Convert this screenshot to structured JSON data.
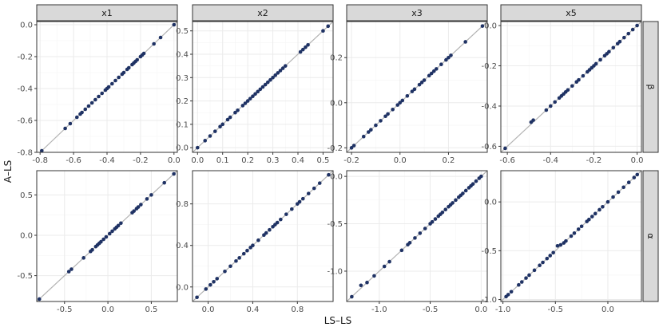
{
  "chart_data": {
    "type": "scatter",
    "facet_layout": "grid",
    "xlabel": "LS–LS",
    "ylabel": "A–LS",
    "grid": true,
    "reference_line": "y = x",
    "colors": {
      "points": "#1f3264",
      "reference_line": "#b3b3b3",
      "strip": "#d9d9d9"
    },
    "columns": [
      "x1",
      "x2",
      "x3",
      "x5"
    ],
    "rows": [
      "β",
      "α"
    ],
    "panels": [
      {
        "column": "x1",
        "row": "β",
        "xlim": [
          -0.82,
          0.02
        ],
        "ylim": [
          -0.8,
          0.02
        ],
        "xticks": [
          -0.8,
          -0.6,
          -0.4,
          -0.2,
          0.0
        ],
        "yticks": [
          -0.8,
          -0.6,
          -0.4,
          -0.2,
          0.0
        ],
        "x": [
          -0.79,
          -0.65,
          -0.62,
          -0.58,
          -0.56,
          -0.55,
          -0.53,
          -0.51,
          -0.49,
          -0.47,
          -0.45,
          -0.43,
          -0.41,
          -0.4,
          -0.39,
          -0.37,
          -0.35,
          -0.33,
          -0.31,
          -0.3,
          -0.28,
          -0.27,
          -0.25,
          -0.24,
          -0.23,
          -0.22,
          -0.2,
          -0.19,
          -0.18,
          -0.12,
          -0.08,
          0.0
        ],
        "y": [
          -0.79,
          -0.65,
          -0.62,
          -0.58,
          -0.56,
          -0.55,
          -0.53,
          -0.51,
          -0.49,
          -0.47,
          -0.45,
          -0.43,
          -0.41,
          -0.4,
          -0.39,
          -0.37,
          -0.35,
          -0.33,
          -0.31,
          -0.3,
          -0.28,
          -0.27,
          -0.25,
          -0.24,
          -0.23,
          -0.22,
          -0.2,
          -0.19,
          -0.18,
          -0.12,
          -0.08,
          0.0
        ]
      },
      {
        "column": "x2",
        "row": "β",
        "xlim": [
          -0.02,
          0.54
        ],
        "ylim": [
          -0.02,
          0.54
        ],
        "xticks": [
          0.0,
          0.1,
          0.2,
          0.3,
          0.4,
          0.5
        ],
        "yticks": [
          0.0,
          0.1,
          0.2,
          0.3,
          0.4,
          0.5
        ],
        "x": [
          0.0,
          0.03,
          0.05,
          0.07,
          0.09,
          0.1,
          0.12,
          0.13,
          0.15,
          0.16,
          0.18,
          0.19,
          0.2,
          0.21,
          0.22,
          0.23,
          0.24,
          0.25,
          0.26,
          0.27,
          0.28,
          0.29,
          0.3,
          0.31,
          0.32,
          0.33,
          0.34,
          0.35,
          0.41,
          0.42,
          0.43,
          0.44,
          0.5,
          0.52
        ],
        "y": [
          0.0,
          0.03,
          0.05,
          0.07,
          0.09,
          0.1,
          0.12,
          0.13,
          0.15,
          0.16,
          0.18,
          0.19,
          0.2,
          0.21,
          0.22,
          0.23,
          0.24,
          0.25,
          0.26,
          0.27,
          0.28,
          0.29,
          0.3,
          0.31,
          0.32,
          0.33,
          0.34,
          0.35,
          0.41,
          0.42,
          0.43,
          0.44,
          0.5,
          0.52
        ]
      },
      {
        "column": "x3",
        "row": "β",
        "xlim": [
          -0.22,
          0.36
        ],
        "ylim": [
          -0.22,
          0.36
        ],
        "xticks": [
          -0.2,
          0.0,
          0.2
        ],
        "yticks": [
          -0.2,
          0.0,
          0.2
        ],
        "x": [
          -0.2,
          -0.19,
          -0.15,
          -0.13,
          -0.12,
          -0.1,
          -0.08,
          -0.06,
          -0.05,
          -0.03,
          -0.01,
          0.0,
          0.01,
          0.03,
          0.05,
          0.06,
          0.08,
          0.09,
          0.1,
          0.12,
          0.13,
          0.14,
          0.15,
          0.17,
          0.19,
          0.2,
          0.21,
          0.27,
          0.34
        ],
        "y": [
          -0.2,
          -0.19,
          -0.15,
          -0.13,
          -0.12,
          -0.1,
          -0.08,
          -0.06,
          -0.05,
          -0.03,
          -0.01,
          0.0,
          0.01,
          0.03,
          0.05,
          0.06,
          0.08,
          0.09,
          0.1,
          0.12,
          0.13,
          0.14,
          0.15,
          0.17,
          0.19,
          0.2,
          0.21,
          0.27,
          0.34
        ]
      },
      {
        "column": "x5",
        "row": "β",
        "xlim": [
          -0.63,
          0.02
        ],
        "ylim": [
          -0.63,
          0.02
        ],
        "xticks": [
          -0.6,
          -0.4,
          -0.2,
          0.0
        ],
        "yticks": [
          -0.6,
          -0.4,
          -0.2,
          0.0
        ],
        "x": [
          -0.61,
          -0.49,
          -0.48,
          -0.42,
          -0.4,
          -0.38,
          -0.36,
          -0.35,
          -0.34,
          -0.33,
          -0.32,
          -0.3,
          -0.28,
          -0.27,
          -0.25,
          -0.23,
          -0.22,
          -0.21,
          -0.2,
          -0.19,
          -0.17,
          -0.15,
          -0.14,
          -0.13,
          -0.11,
          -0.09,
          -0.08,
          -0.06,
          -0.04,
          -0.02,
          0.0
        ],
        "y": [
          -0.61,
          -0.48,
          -0.47,
          -0.42,
          -0.4,
          -0.38,
          -0.36,
          -0.35,
          -0.34,
          -0.33,
          -0.32,
          -0.3,
          -0.28,
          -0.27,
          -0.25,
          -0.23,
          -0.22,
          -0.21,
          -0.2,
          -0.19,
          -0.17,
          -0.15,
          -0.14,
          -0.13,
          -0.11,
          -0.09,
          -0.08,
          -0.06,
          -0.04,
          -0.02,
          0.0
        ]
      },
      {
        "column": "x1",
        "row": "α",
        "xlim": [
          -0.82,
          0.8
        ],
        "ylim": [
          -0.82,
          0.8
        ],
        "xticks": [
          -0.5,
          0.0,
          0.5
        ],
        "yticks": [
          -0.5,
          0.0,
          0.5
        ],
        "x": [
          -0.79,
          -0.45,
          -0.42,
          -0.28,
          -0.2,
          -0.18,
          -0.14,
          -0.12,
          -0.1,
          -0.08,
          -0.05,
          -0.02,
          0.02,
          0.05,
          0.08,
          0.1,
          0.12,
          0.15,
          0.28,
          0.3,
          0.33,
          0.35,
          0.38,
          0.45,
          0.5,
          0.65,
          0.76
        ],
        "y": [
          -0.79,
          -0.45,
          -0.42,
          -0.28,
          -0.2,
          -0.18,
          -0.14,
          -0.12,
          -0.1,
          -0.08,
          -0.05,
          -0.02,
          0.02,
          0.05,
          0.08,
          0.1,
          0.12,
          0.15,
          0.28,
          0.3,
          0.33,
          0.35,
          0.38,
          0.45,
          0.5,
          0.65,
          0.76
        ]
      },
      {
        "column": "x2",
        "row": "α",
        "xlim": [
          -0.14,
          1.12
        ],
        "ylim": [
          -0.14,
          1.12
        ],
        "xticks": [
          0.0,
          0.4,
          0.8
        ],
        "yticks": [
          0.0,
          0.4,
          0.8
        ],
        "x": [
          -0.1,
          -0.02,
          0.02,
          0.05,
          0.08,
          0.15,
          0.2,
          0.25,
          0.28,
          0.32,
          0.35,
          0.38,
          0.4,
          0.45,
          0.5,
          0.52,
          0.55,
          0.58,
          0.6,
          0.62,
          0.65,
          0.7,
          0.75,
          0.8,
          0.82,
          0.85,
          0.9,
          0.95,
          1.0,
          1.08
        ],
        "y": [
          -0.1,
          -0.02,
          0.02,
          0.05,
          0.08,
          0.15,
          0.2,
          0.25,
          0.28,
          0.32,
          0.35,
          0.38,
          0.4,
          0.45,
          0.5,
          0.52,
          0.55,
          0.58,
          0.6,
          0.62,
          0.65,
          0.7,
          0.75,
          0.8,
          0.82,
          0.85,
          0.9,
          0.95,
          1.0,
          1.08
        ]
      },
      {
        "column": "x3",
        "row": "α",
        "xlim": [
          -1.32,
          0.06
        ],
        "ylim": [
          -1.32,
          0.06
        ],
        "xticks": [
          -1.0,
          -0.5,
          0.0
        ],
        "yticks": [
          -1.0,
          -0.5,
          0.0
        ],
        "x": [
          -1.27,
          -1.18,
          -1.12,
          -1.05,
          -0.95,
          -0.9,
          -0.78,
          -0.72,
          -0.7,
          -0.65,
          -0.6,
          -0.55,
          -0.5,
          -0.48,
          -0.45,
          -0.42,
          -0.4,
          -0.38,
          -0.35,
          -0.32,
          -0.3,
          -0.28,
          -0.25,
          -0.22,
          -0.2,
          -0.18,
          -0.15,
          -0.12,
          -0.1,
          -0.08,
          -0.05,
          -0.02,
          0.0
        ],
        "y": [
          -1.27,
          -1.15,
          -1.12,
          -1.05,
          -0.95,
          -0.9,
          -0.78,
          -0.72,
          -0.7,
          -0.65,
          -0.6,
          -0.55,
          -0.5,
          -0.48,
          -0.45,
          -0.42,
          -0.4,
          -0.38,
          -0.35,
          -0.32,
          -0.3,
          -0.28,
          -0.25,
          -0.22,
          -0.2,
          -0.18,
          -0.15,
          -0.12,
          -0.1,
          -0.08,
          -0.05,
          -0.02,
          0.0
        ]
      },
      {
        "column": "x5",
        "row": "α",
        "xlim": [
          -1.02,
          0.32
        ],
        "ylim": [
          -1.02,
          0.32
        ],
        "xticks": [
          -1.0,
          -0.5,
          0.0
        ],
        "yticks": [
          -1.0,
          -0.5,
          0.0
        ],
        "x": [
          -0.97,
          -0.95,
          -0.92,
          -0.85,
          -0.82,
          -0.78,
          -0.75,
          -0.7,
          -0.65,
          -0.62,
          -0.58,
          -0.55,
          -0.52,
          -0.48,
          -0.45,
          -0.42,
          -0.4,
          -0.35,
          -0.32,
          -0.28,
          -0.25,
          -0.2,
          -0.18,
          -0.15,
          -0.12,
          -0.08,
          -0.05,
          0.0,
          0.05,
          0.1,
          0.15,
          0.2,
          0.25,
          0.28
        ],
        "y": [
          -0.97,
          -0.95,
          -0.92,
          -0.85,
          -0.82,
          -0.78,
          -0.75,
          -0.7,
          -0.65,
          -0.62,
          -0.58,
          -0.55,
          -0.52,
          -0.45,
          -0.44,
          -0.42,
          -0.4,
          -0.35,
          -0.32,
          -0.28,
          -0.25,
          -0.2,
          -0.18,
          -0.15,
          -0.12,
          -0.08,
          -0.05,
          0.0,
          0.05,
          0.1,
          0.15,
          0.2,
          0.25,
          0.28
        ]
      }
    ]
  }
}
